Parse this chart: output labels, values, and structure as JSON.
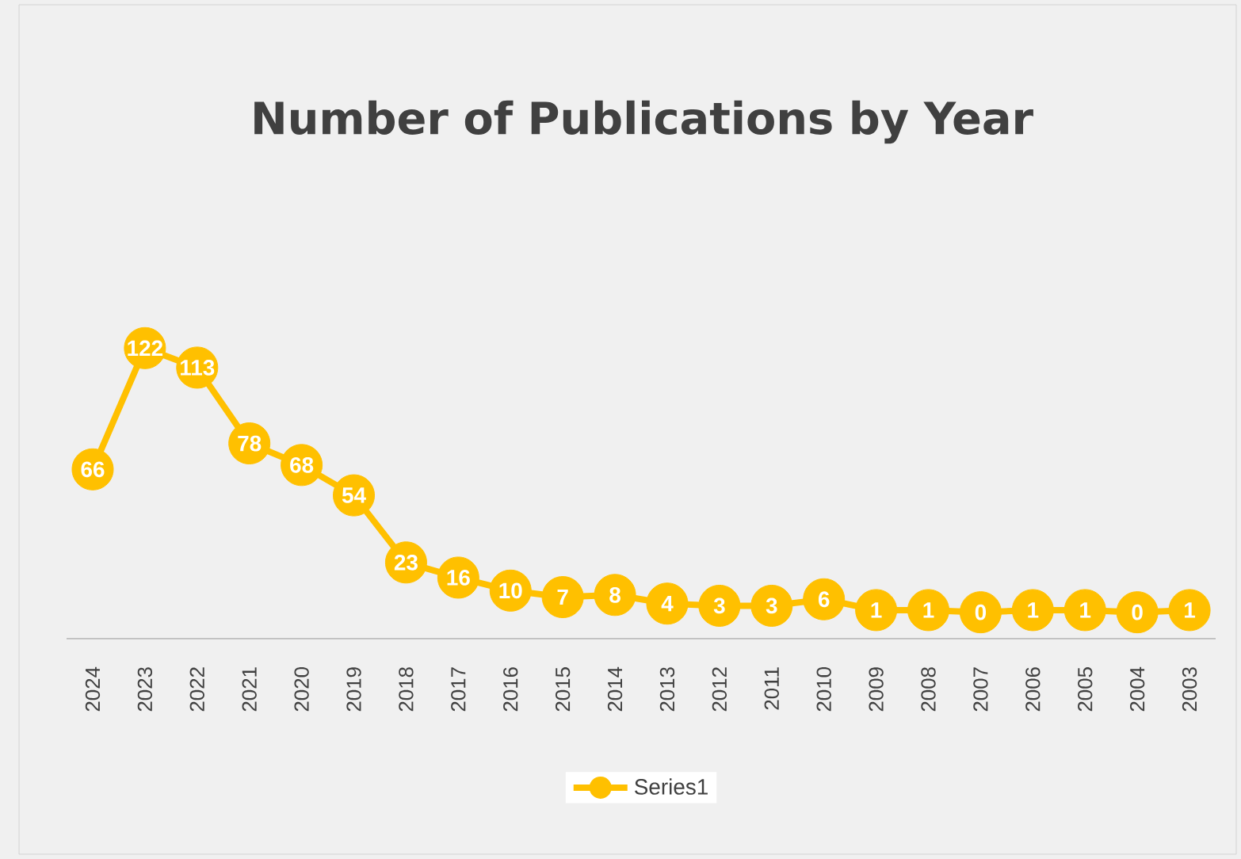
{
  "chart_data": {
    "type": "line",
    "title": "Number of Publications by Year",
    "categories": [
      "2024",
      "2023",
      "2022",
      "2021",
      "2020",
      "2019",
      "2018",
      "2017",
      "2016",
      "2015",
      "2014",
      "2013",
      "2012",
      "2011",
      "2010",
      "2009",
      "2008",
      "2007",
      "2006",
      "2005",
      "2004",
      "2003"
    ],
    "series": [
      {
        "name": "Series1",
        "color": "#ffc000",
        "values": [
          66,
          122,
          113,
          78,
          68,
          54,
          23,
          16,
          10,
          7,
          8,
          4,
          3,
          3,
          6,
          1,
          1,
          0,
          1,
          1,
          0,
          1
        ]
      }
    ],
    "tick_labels": "x",
    "legend": "bottom",
    "marker": "circle",
    "line_style": "solid",
    "data_labels": true
  }
}
